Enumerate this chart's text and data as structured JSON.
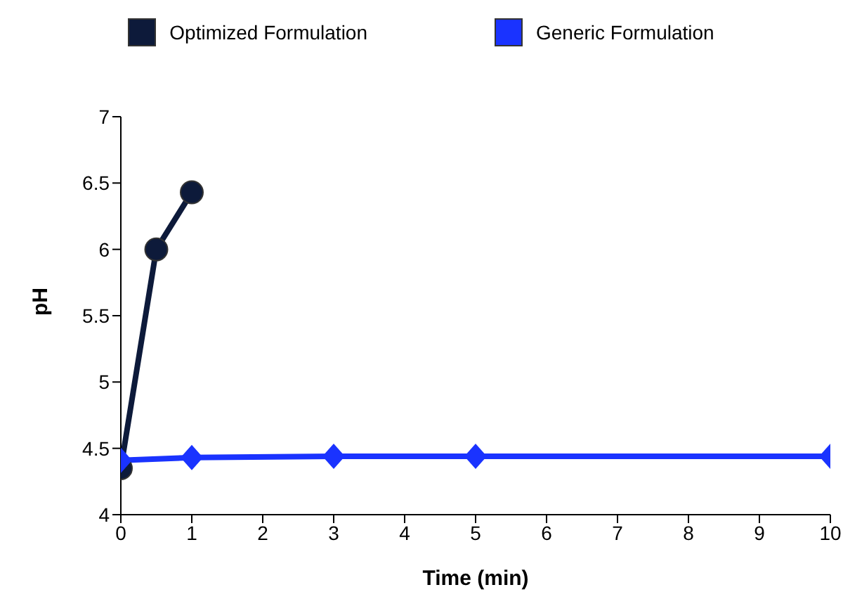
{
  "chart_data": {
    "type": "line",
    "xlabel": "Time (min)",
    "ylabel": "pH",
    "xlim": [
      0,
      10
    ],
    "xticks": [
      0,
      1,
      2,
      3,
      4,
      5,
      6,
      7,
      8,
      9,
      10
    ],
    "ylim": [
      4,
      7
    ],
    "yticks": [
      4,
      4.5,
      5,
      5.5,
      6,
      6.5,
      7
    ],
    "grid": false,
    "legend": "top",
    "series": [
      {
        "name": "Optimized Formulation",
        "color": "#0d1a3a",
        "marker": "circle",
        "x": [
          0,
          0.5,
          1
        ],
        "values": [
          4.35,
          6.0,
          6.43
        ]
      },
      {
        "name": "Generic Formulation",
        "color": "#1a33ff",
        "marker": "diamond",
        "x": [
          0,
          1,
          3,
          5,
          10
        ],
        "values": [
          4.41,
          4.43,
          4.44,
          4.44,
          4.44
        ]
      }
    ]
  }
}
